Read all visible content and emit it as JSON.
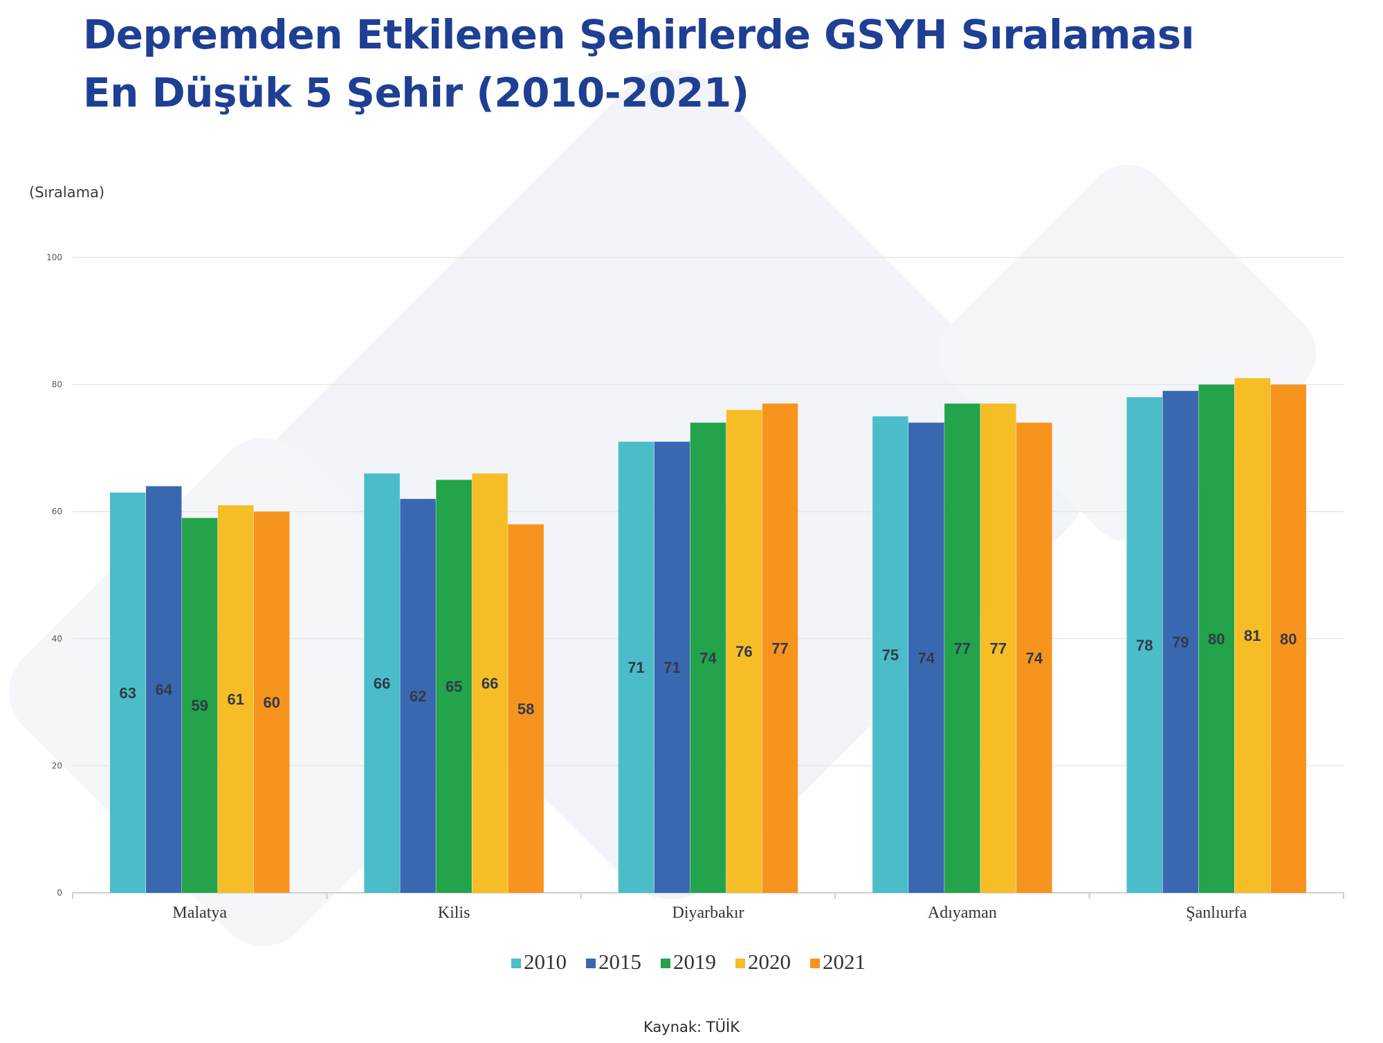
{
  "title": {
    "line1": "Depremden Etkilenen Şehirlerde GSYH Sıralaması",
    "line2": "En Düşük 5 Şehir (2010-2021)"
  },
  "source": "Kaynak: TÜİK",
  "colors": {
    "title": "#1e3f93",
    "2010": "#4bbdc9",
    "2015": "#3a68b0",
    "2019": "#23a34a",
    "2020": "#f7bd26",
    "2021": "#f7941e",
    "gridline": "#e6e6e6",
    "background_shape": "#f2f3f9"
  },
  "chart_data": {
    "type": "bar",
    "ylabel": "(Sıralama)",
    "ylim": [
      0,
      100
    ],
    "yticks": [
      "0",
      "20",
      "40",
      "60",
      "80",
      "100"
    ],
    "grid": true,
    "legend_position": "bottom",
    "categories": [
      "Malatya",
      "Kilis",
      "Diyarbakır",
      "Adıyaman",
      "Şanlıurfa"
    ],
    "series": [
      {
        "name": "2010",
        "values": [
          63,
          66,
          71,
          75,
          78
        ]
      },
      {
        "name": "2015",
        "values": [
          64,
          62,
          71,
          74,
          79
        ]
      },
      {
        "name": "2019",
        "values": [
          59,
          65,
          74,
          77,
          80
        ]
      },
      {
        "name": "2020",
        "values": [
          61,
          66,
          76,
          77,
          81
        ]
      },
      {
        "name": "2021",
        "values": [
          60,
          58,
          77,
          74,
          80
        ]
      }
    ]
  }
}
